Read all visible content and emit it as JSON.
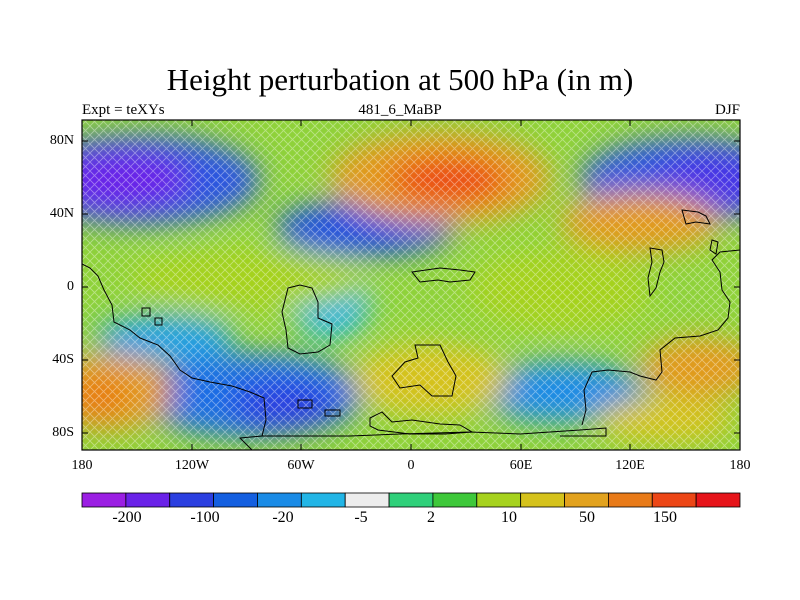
{
  "title": "Height perturbation at 500 hPa (in m)",
  "subtitle_left": "Expt = teXYs",
  "subtitle_center": "481_6_MaBP",
  "subtitle_right": "DJF",
  "y_tick_labels": [
    "80N",
    "40N",
    "0",
    "40S",
    "80S"
  ],
  "x_tick_labels": [
    "180",
    "120W",
    "60W",
    "0",
    "60E",
    "120E",
    "180"
  ],
  "colorbar": {
    "colors": [
      "#9b1fe3",
      "#6a22e8",
      "#2b3fe0",
      "#145fe0",
      "#1a8be6",
      "#22b5e6",
      "#ededed",
      "#2fd07a",
      "#3ec83a",
      "#a6d21e",
      "#d5c21c",
      "#e2a21e",
      "#e87a18",
      "#ec4616",
      "#e6141a"
    ],
    "labels": [
      "-200",
      "-100",
      "-20",
      "-5",
      "2",
      "10",
      "50",
      "150"
    ]
  },
  "chart_data": {
    "type": "heatmap",
    "title": "Height perturbation at 500 hPa (in m)",
    "xlabel": "",
    "ylabel": "",
    "x_range": [
      -180,
      180
    ],
    "y_range": [
      -90,
      90
    ],
    "levels": [
      -200,
      -100,
      -20,
      -5,
      2,
      10,
      50,
      150
    ],
    "features": [
      {
        "region": "60N, 150W-130W",
        "value": -150
      },
      {
        "region": "60N, 160E-180",
        "value": -120
      },
      {
        "region": "30N, 60W-20W",
        "value": -60
      },
      {
        "region": "60N, 10E-20E",
        "value": 150
      },
      {
        "region": "35N, 140E-160E",
        "value": 60
      },
      {
        "region": "60S, 160W-150W",
        "value": 80
      },
      {
        "region": "45S, 140E-160E",
        "value": 50
      },
      {
        "region": "65S, 60W-40W",
        "value": -80
      },
      {
        "region": "40S, 90E-120E",
        "value": -50
      },
      {
        "region": "0, 40W-10W",
        "value": -10
      }
    ]
  }
}
